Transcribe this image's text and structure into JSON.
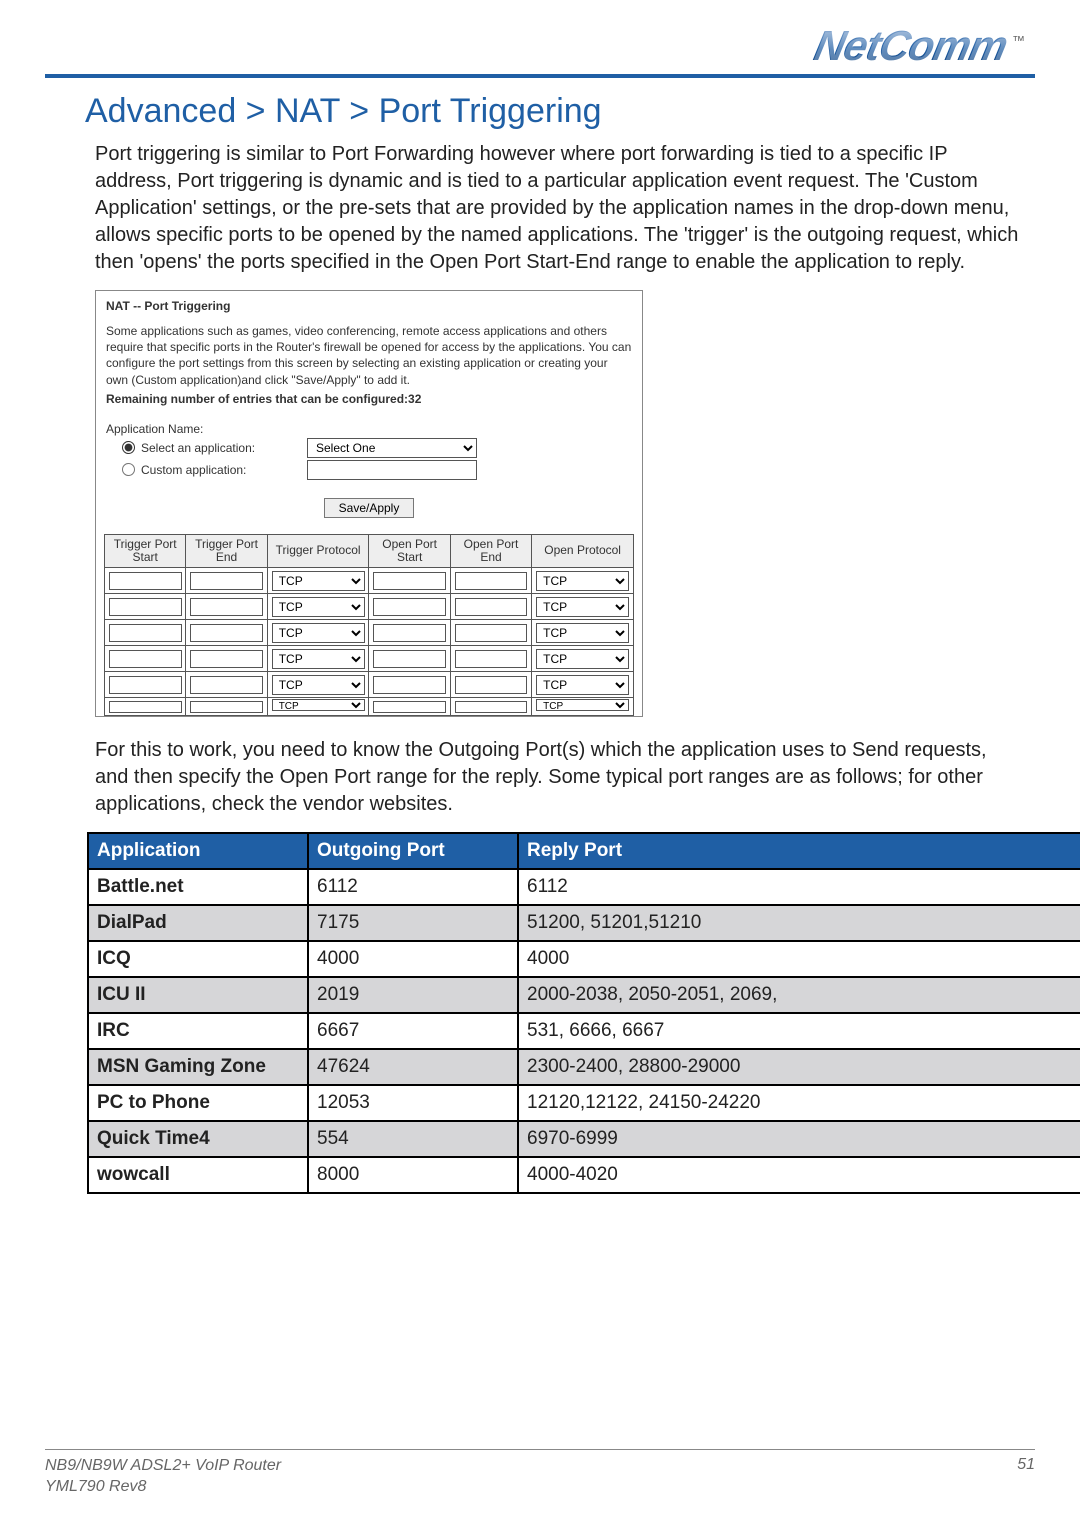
{
  "brand": {
    "name": "NetComm",
    "tm": "™"
  },
  "title": "Advanced > NAT > Port Triggering",
  "intro": "Port triggering is similar to Port Forwarding however where port forwarding is tied to a specific IP address, Port triggering is dynamic and is tied to a particular application event request.  The 'Custom Application' settings, or the pre-sets that are provided by the application names in the drop-down menu, allows specific ports to be opened by the named applications. The 'trigger' is the outgoing request, which then 'opens' the ports specified in the Open Port Start-End range to enable the application to reply.",
  "panel": {
    "title": "NAT -- Port Triggering",
    "desc": "Some applications such as games, video conferencing, remote access applications and others require that specific ports in the Router's firewall be opened for access by the applications. You can configure the port settings from this screen by selecting an existing application or creating your own (Custom application)and click \"Save/Apply\" to add it.",
    "remaining": "Remaining number of entries that can be configured:32",
    "app_name_label": "Application Name:",
    "radio_select_label": "Select an application:",
    "radio_custom_label": "Custom application:",
    "select_value": "Select One",
    "save_label": "Save/Apply",
    "grid_headers": [
      "Trigger Port Start",
      "Trigger Port End",
      "Trigger Protocol",
      "Open Port Start",
      "Open Port End",
      "Open Protocol"
    ],
    "proto_value": "TCP",
    "row_count": 5
  },
  "mid": "For this to work, you need to know the Outgoing Port(s) which the application uses to Send requests, and then specify the Open Port range for the reply. Some typical port ranges are as follows; for other applications, check the vendor websites.",
  "datatable": {
    "headers": [
      "Application",
      "Outgoing Port",
      "Reply Port"
    ],
    "rows": [
      {
        "app": "Battle.net",
        "out": "6112",
        "reply": "6112",
        "shade": false
      },
      {
        "app": "DialPad",
        "out": "7175",
        "reply": "51200, 51201,51210",
        "shade": true
      },
      {
        "app": "ICQ",
        "out": "4000",
        "reply": "4000",
        "shade": false
      },
      {
        "app": "ICU II",
        "out": "2019",
        "reply": "2000-2038, 2050-2051, 2069,",
        "shade": true
      },
      {
        "app": "IRC",
        "out": "6667",
        "reply": "531, 6666, 6667",
        "shade": false
      },
      {
        "app": "MSN Gaming Zone",
        "out": "47624",
        "reply": "2300-2400, 28800-29000",
        "shade": true
      },
      {
        "app": "PC to Phone",
        "out": "12053",
        "reply": "12120,12122, 24150-24220",
        "shade": false
      },
      {
        "app": "Quick Time4",
        "out": "554",
        "reply": "6970-6999",
        "shade": true
      },
      {
        "app": "wowcall",
        "out": "8000",
        "reply": "4000-4020",
        "shade": false
      }
    ]
  },
  "footer": {
    "line1": "NB9/NB9W ADSL2+ VoIP Router",
    "line2": "YML790 Rev8",
    "page": "51"
  },
  "colors": {
    "brand_blue": "#1f5fa5",
    "table_border": "#000000",
    "shade": "#d6d6d8"
  }
}
